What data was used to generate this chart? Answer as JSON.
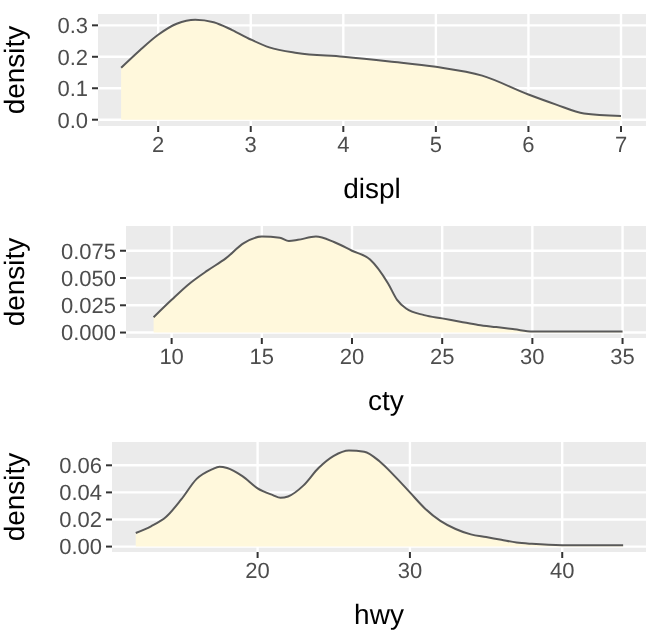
{
  "chart_data": [
    {
      "type": "area",
      "xlabel": "displ",
      "ylabel": "density",
      "grid": true,
      "x": [
        1.6,
        1.8,
        2.0,
        2.2,
        2.4,
        2.6,
        2.8,
        3.0,
        3.2,
        3.5,
        4.0,
        4.5,
        5.0,
        5.5,
        6.0,
        6.3,
        6.6,
        7.0
      ],
      "series": [
        {
          "color": "#fff8dc",
          "values": [
            0.165,
            0.22,
            0.27,
            0.305,
            0.318,
            0.31,
            0.285,
            0.255,
            0.23,
            0.212,
            0.2,
            0.185,
            0.168,
            0.14,
            0.08,
            0.048,
            0.02,
            0.012
          ]
        }
      ],
      "xlim": [
        1.35,
        7.27
      ],
      "ylim": [
        -0.02,
        0.336
      ],
      "xticks": [
        2,
        3,
        4,
        5,
        6,
        7
      ],
      "yticks": [
        {
          "value": 0,
          "label": "0.0"
        },
        0.1,
        0.2,
        0.3
      ]
    },
    {
      "type": "area",
      "xlabel": "cty",
      "ylabel": "density",
      "grid": true,
      "x": [
        9,
        10,
        11,
        12,
        13,
        14,
        15,
        16,
        16.5,
        17,
        18,
        19,
        20,
        21,
        22,
        22.5,
        23,
        24,
        25,
        26,
        27,
        28,
        29,
        30,
        31,
        32,
        33,
        35
      ],
      "series": [
        {
          "color": "#fff8dc",
          "values": [
            0.014,
            0.03,
            0.045,
            0.057,
            0.068,
            0.082,
            0.088,
            0.087,
            0.084,
            0.085,
            0.088,
            0.083,
            0.075,
            0.067,
            0.045,
            0.03,
            0.022,
            0.016,
            0.013,
            0.01,
            0.007,
            0.005,
            0.003,
            0.001,
            0.001,
            0.001,
            0.001,
            0.001
          ]
        }
      ],
      "xlim": [
        7.47,
        36.3
      ],
      "ylim": [
        -0.005,
        0.0977
      ],
      "xticks": [
        10,
        15,
        20,
        25,
        30,
        35
      ],
      "yticks": [
        {
          "value": 0,
          "label": "0.000"
        },
        {
          "value": 0.025,
          "label": "0.025"
        },
        {
          "value": 0.05,
          "label": "0.050"
        },
        {
          "value": 0.075,
          "label": "0.075"
        }
      ]
    },
    {
      "type": "area",
      "xlabel": "hwy",
      "ylabel": "density",
      "grid": true,
      "x": [
        12,
        13,
        14,
        15,
        16,
        17,
        17.5,
        18,
        19,
        20,
        21,
        21.5,
        22,
        23,
        24,
        25,
        26,
        27,
        28,
        29,
        30,
        31,
        32,
        33,
        34,
        35,
        36,
        37,
        38,
        40,
        41,
        44
      ],
      "series": [
        {
          "color": "#fff8dc",
          "values": [
            0.01,
            0.015,
            0.022,
            0.035,
            0.05,
            0.057,
            0.059,
            0.058,
            0.052,
            0.043,
            0.038,
            0.036,
            0.037,
            0.045,
            0.058,
            0.067,
            0.071,
            0.07,
            0.063,
            0.052,
            0.04,
            0.028,
            0.019,
            0.013,
            0.009,
            0.007,
            0.005,
            0.003,
            0.002,
            0.001,
            0.001,
            0.001
          ]
        }
      ],
      "xlim": [
        10.44,
        45.5
      ],
      "ylim": [
        -0.004,
        0.0772
      ],
      "xticks": [
        20,
        30,
        40
      ],
      "yticks": [
        {
          "value": 0,
          "label": "0.00"
        },
        {
          "value": 0.02,
          "label": "0.02"
        },
        {
          "value": 0.04,
          "label": "0.04"
        },
        {
          "value": 0.06,
          "label": "0.06"
        }
      ]
    }
  ]
}
